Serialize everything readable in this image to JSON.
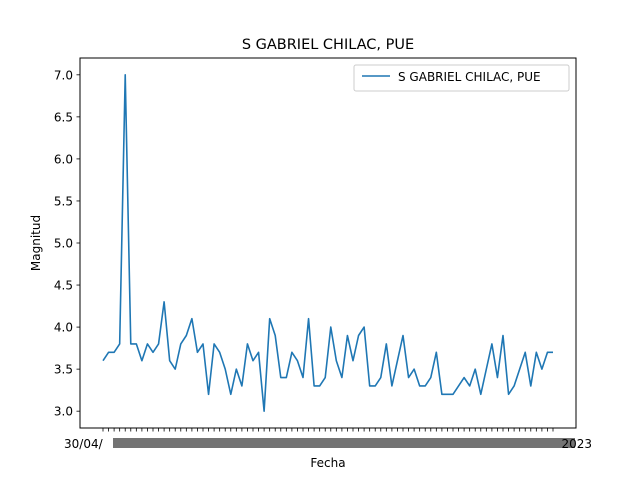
{
  "chart_data": {
    "type": "line",
    "title": "S GABRIEL CHILAC, PUE",
    "xlabel": "Fecha",
    "ylabel": "Magnitud",
    "ylim": [
      2.8,
      7.2
    ],
    "yticks": [
      "3.0",
      "3.5",
      "4.0",
      "4.5",
      "5.0",
      "5.5",
      "6.0",
      "6.5",
      "7.0"
    ],
    "x_tick_label_first": "30/04/",
    "x_tick_label_last": "2023",
    "legend_position": "upper-right",
    "grid": false,
    "series": [
      {
        "name": "S GABRIEL CHILAC, PUE",
        "color": "#1f77b4",
        "values": [
          3.6,
          3.7,
          3.7,
          3.8,
          7.0,
          3.8,
          3.8,
          3.6,
          3.8,
          3.7,
          3.8,
          4.3,
          3.6,
          3.5,
          3.8,
          3.9,
          4.1,
          3.7,
          3.8,
          3.2,
          3.8,
          3.7,
          3.5,
          3.2,
          3.5,
          3.3,
          3.8,
          3.6,
          3.7,
          3.0,
          4.1,
          3.9,
          3.4,
          3.4,
          3.7,
          3.6,
          3.4,
          4.1,
          3.3,
          3.3,
          3.4,
          4.0,
          3.6,
          3.4,
          3.9,
          3.6,
          3.9,
          4.0,
          3.3,
          3.3,
          3.4,
          3.8,
          3.3,
          3.6,
          3.9,
          3.4,
          3.5,
          3.3,
          3.3,
          3.4,
          3.7,
          3.2,
          3.2,
          3.2,
          3.3,
          3.4,
          3.3,
          3.5,
          3.2,
          3.5,
          3.8,
          3.4,
          3.9,
          3.2,
          3.3,
          3.5,
          3.7,
          3.3,
          3.7,
          3.5,
          3.7,
          3.7
        ]
      }
    ]
  }
}
